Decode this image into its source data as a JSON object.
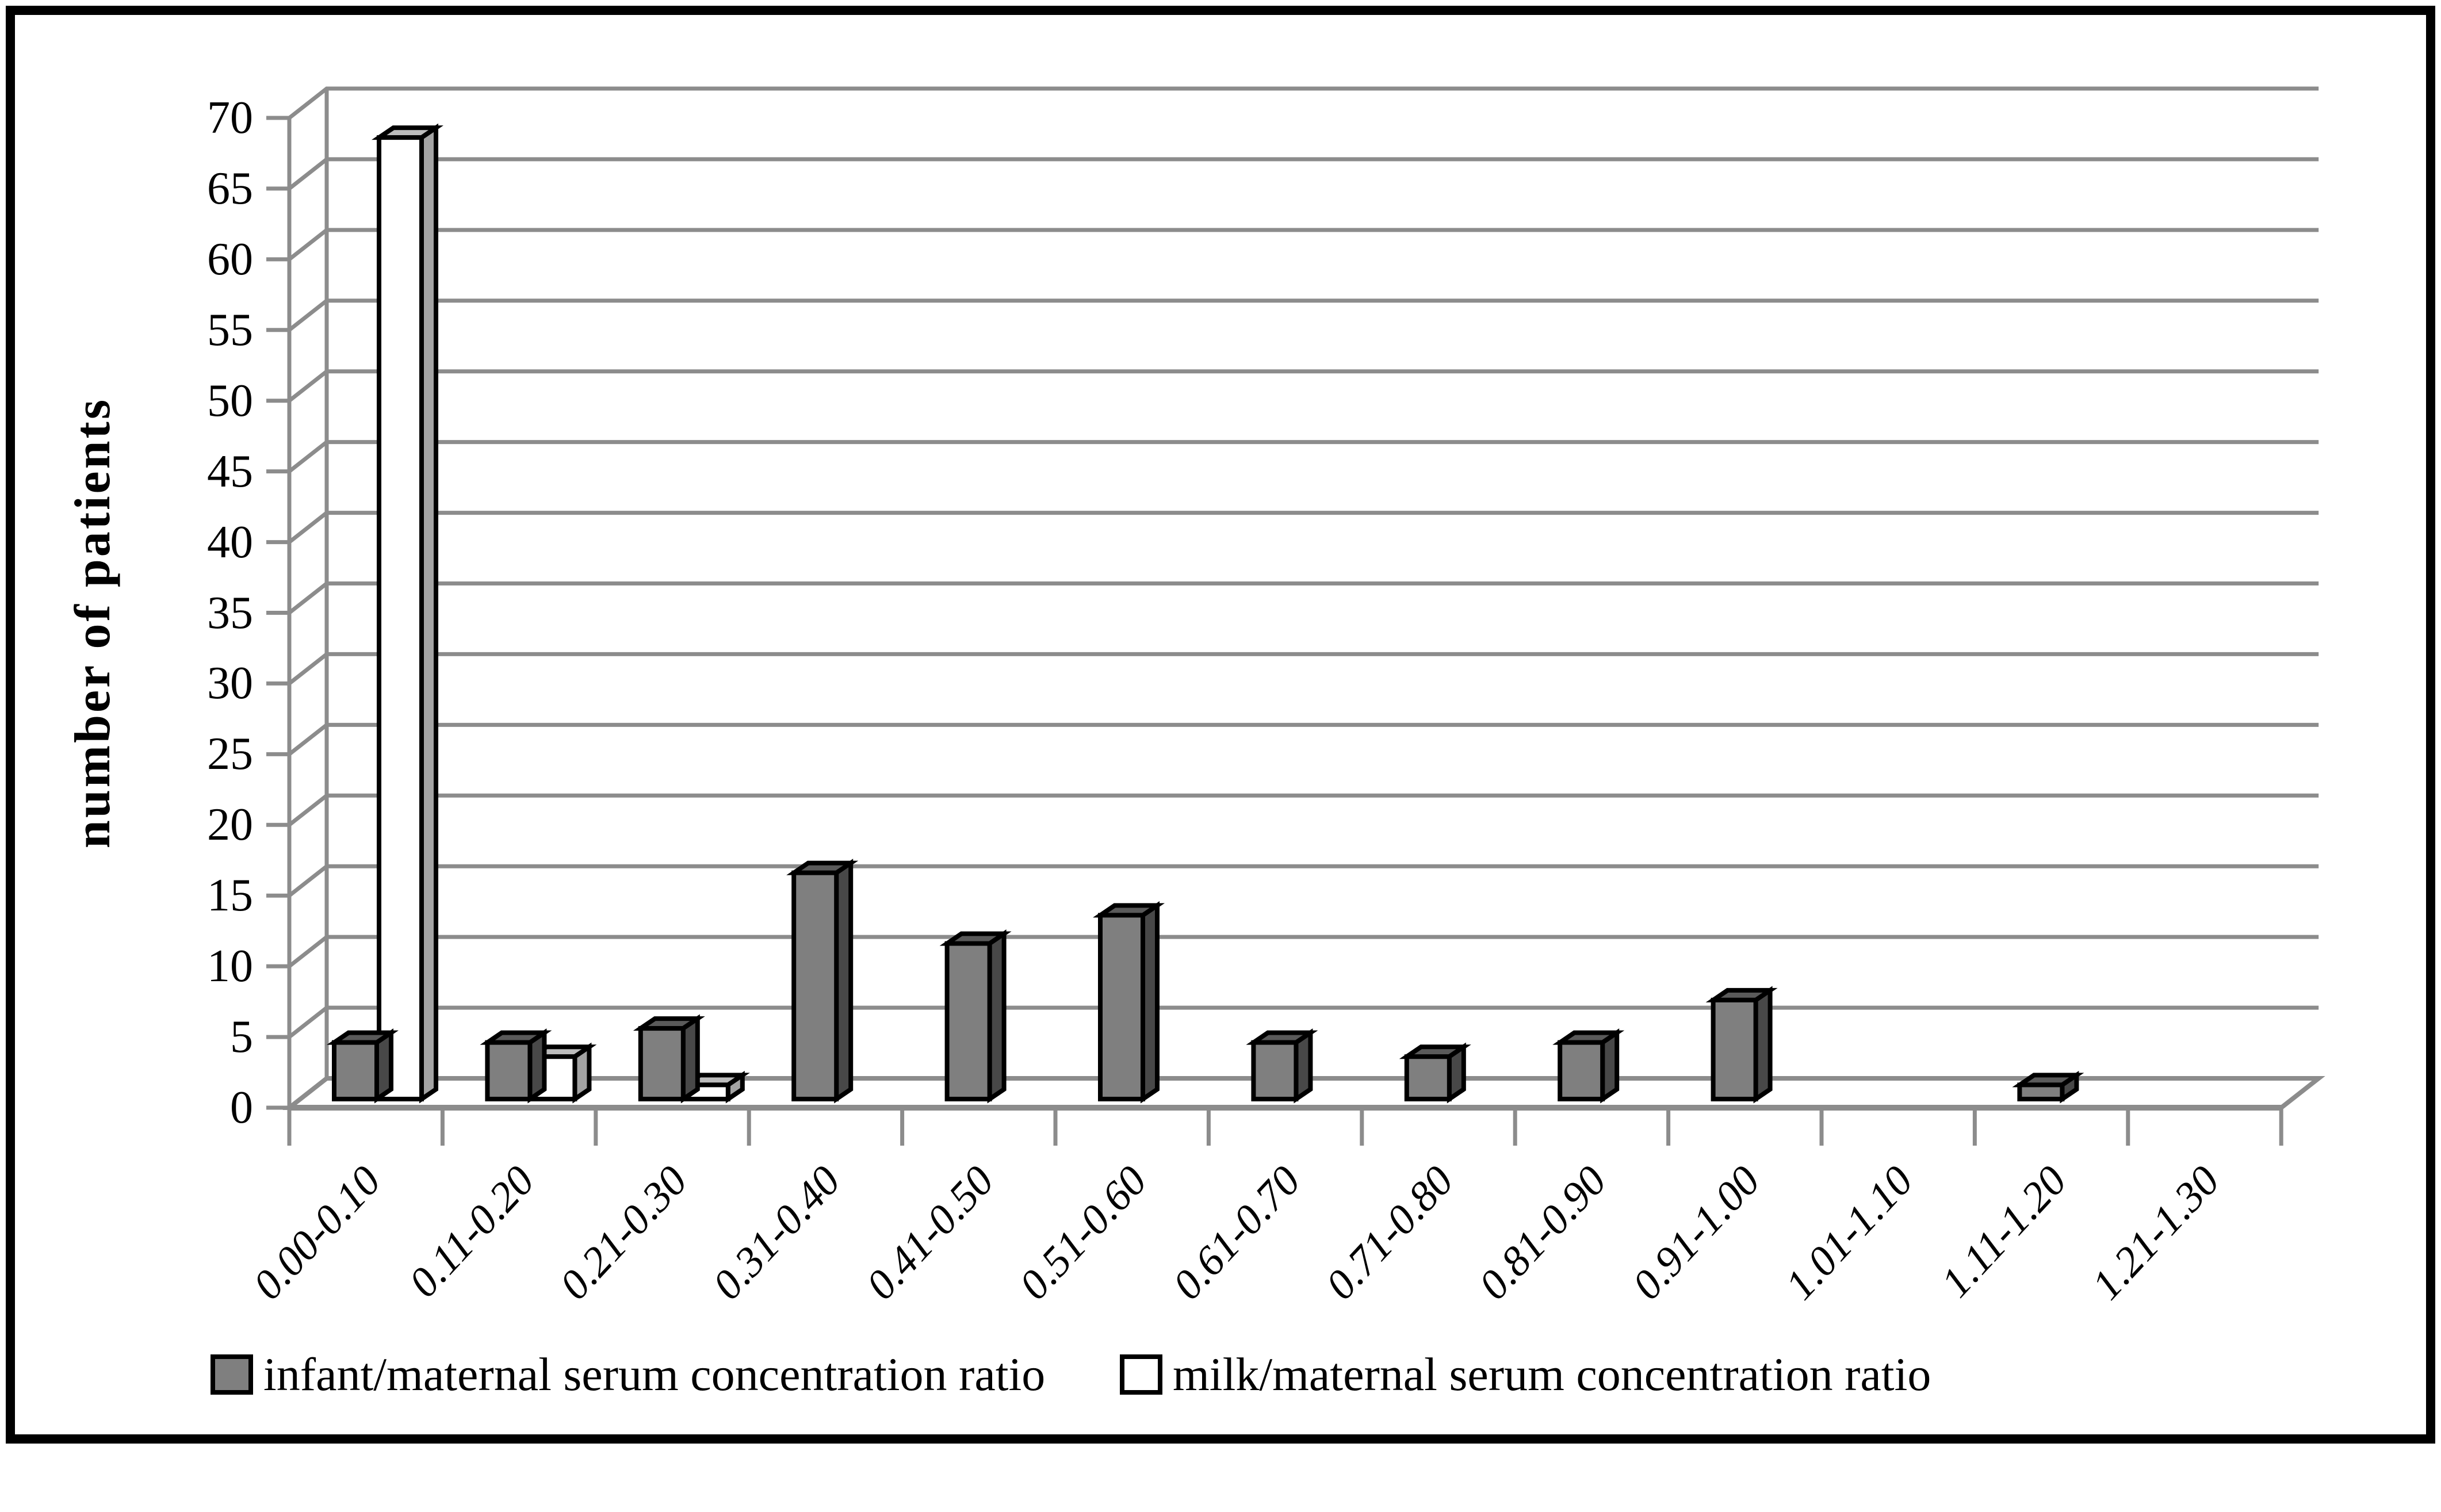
{
  "figure": {
    "background": "#ffffff",
    "border_color": "#000000"
  },
  "chart_data": {
    "type": "bar",
    "style": "3d-column",
    "title": "",
    "xlabel": "",
    "ylabel": "number of patients",
    "ylim": [
      0,
      70
    ],
    "y_tick_step": 5,
    "y_tick_labels": [
      "0",
      "5",
      "10",
      "15",
      "20",
      "25",
      "30",
      "35",
      "40",
      "45",
      "50",
      "55",
      "60",
      "65",
      "70"
    ],
    "grid": true,
    "legend_position": "bottom",
    "categories": [
      "0.00-0.10",
      "0.11-0.20",
      "0.21-0.30",
      "0.31-0.40",
      "0.41-0.50",
      "0.51-0.60",
      "0.61-0.70",
      "0.71-0.80",
      "0.81-0.90",
      "0.91-1.00",
      "1.01-1.10",
      "1.11-1.20",
      "1.21-1.30"
    ],
    "series": [
      {
        "name": "infant/maternal serum concentration ratio",
        "values": [
          4,
          4,
          5,
          16,
          11,
          13,
          4,
          3,
          4,
          7,
          0,
          1,
          0
        ]
      },
      {
        "name": "milk/maternal serum concentration ratio",
        "values": [
          68,
          3,
          1,
          0,
          0,
          0,
          0,
          0,
          0,
          0,
          0,
          0,
          0
        ]
      }
    ]
  },
  "legend": {
    "items": [
      {
        "label": "infant/maternal serum concentration ratio",
        "fill": "#7f7f7f"
      },
      {
        "label": "milk/maternal serum concentration ratio",
        "fill": "#ffffff"
      }
    ]
  },
  "colors": {
    "gray_bar_front": "#7f7f7f",
    "gray_bar_top": "#5a5a5a",
    "gray_bar_side": "#484848",
    "white_bar_front": "#ffffff",
    "white_bar_top": "#bcbcbc",
    "white_bar_side": "#a3a3a3",
    "bar_outline": "#000000",
    "gridline": "#8c8c8c",
    "axis": "#8c8c8c",
    "text": "#000000"
  }
}
